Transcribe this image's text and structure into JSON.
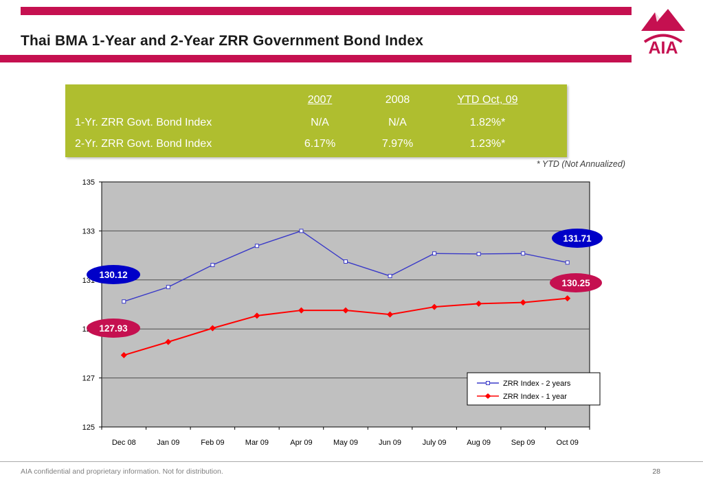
{
  "slide": {
    "title": "Thai BMA 1-Year and 2-Year ZRR Government Bond Index",
    "logo_text": "AIA",
    "footer_note": "AIA confidential and proprietary information. Not for distribution.",
    "page_number": "28"
  },
  "colors": {
    "brand_crimson": "#C51050",
    "table_bg": "#AFBE2F",
    "plot_bg": "#C0C0C0",
    "blue_series": "#3939C8",
    "red_series": "#FF0000",
    "callout_blue": "#0000C8",
    "callout_red": "#C51050"
  },
  "summary_table": {
    "columns": [
      "2007",
      "2008",
      "YTD Oct, 09"
    ],
    "rows": [
      {
        "label": "1-Yr. ZRR Govt. Bond Index",
        "values": [
          "N/A",
          "N/A",
          "1.82%*"
        ]
      },
      {
        "label": "2-Yr. ZRR Govt. Bond Index",
        "values": [
          "6.17%",
          "7.97%",
          "1.23%*"
        ]
      }
    ],
    "footnote": "* YTD (Not Annualized)"
  },
  "chart_data": {
    "type": "line",
    "categories": [
      "Dec 08",
      "Jan 09",
      "Feb 09",
      "Mar 09",
      "Apr 09",
      "May 09",
      "Jun 09",
      "July 09",
      "Aug 09",
      "Sep 09",
      "Oct 09"
    ],
    "series": [
      {
        "name": "ZRR Index - 2 years",
        "color": "#3939C8",
        "marker": "square",
        "values": [
          130.12,
          130.71,
          131.61,
          132.39,
          133.0,
          131.75,
          131.16,
          132.08,
          132.06,
          132.08,
          131.71
        ]
      },
      {
        "name": "ZRR Index - 1 year",
        "color": "#FF0000",
        "marker": "diamond",
        "values": [
          127.93,
          128.47,
          129.03,
          129.54,
          129.76,
          129.76,
          129.59,
          129.9,
          130.03,
          130.08,
          130.25
        ]
      }
    ],
    "ylim": [
      125,
      135
    ],
    "yticks": [
      125,
      127,
      129,
      131,
      133,
      135
    ],
    "plot_bg": "#C0C0C0",
    "grid": true,
    "legend_position": "inside-bottom-right",
    "callouts": [
      {
        "text": "130.12",
        "color": "#0000C8"
      },
      {
        "text": "127.93",
        "color": "#C51050"
      },
      {
        "text": "131.71",
        "color": "#0000C8"
      },
      {
        "text": "130.25",
        "color": "#C51050"
      }
    ]
  }
}
